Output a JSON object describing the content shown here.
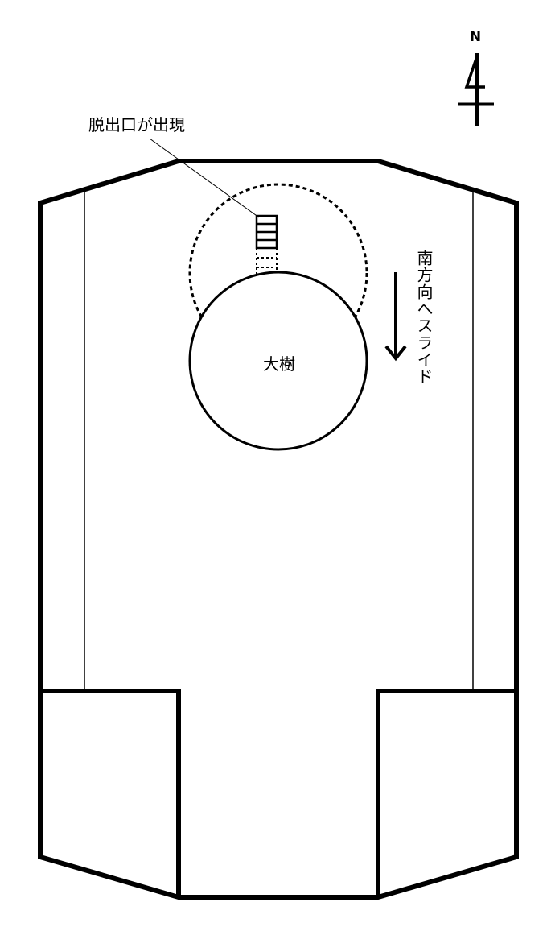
{
  "compass": {
    "north_label": "N"
  },
  "annotations": {
    "exit_label": "脱出口が出現",
    "tree_label": "大樹",
    "slide_label": "南方向へスライド"
  },
  "colors": {
    "ink": "#000000",
    "background": "#ffffff"
  }
}
